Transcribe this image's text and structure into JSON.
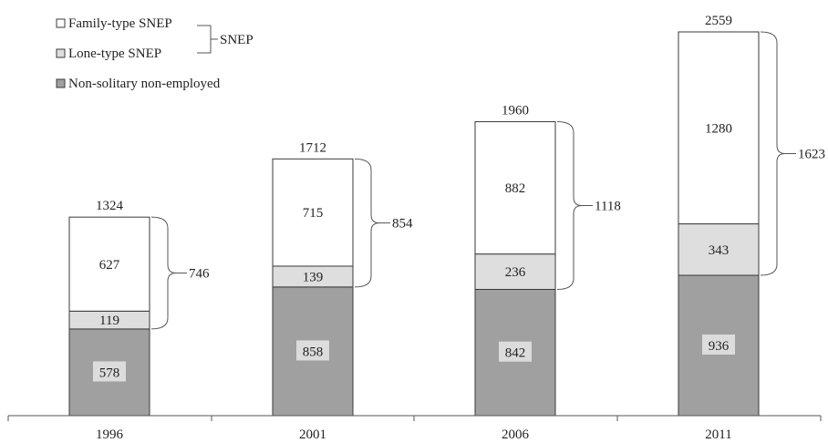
{
  "chart_data": {
    "type": "bar",
    "stacked": true,
    "categories": [
      "1996",
      "2001",
      "2006",
      "2011"
    ],
    "series": [
      {
        "name": "Non-solitary non-employed",
        "values": [
          578,
          858,
          842,
          936
        ],
        "color": "#a0a0a0"
      },
      {
        "name": "Lone-type SNEP",
        "values": [
          119,
          139,
          236,
          343
        ],
        "color": "#dedede"
      },
      {
        "name": "Family-type SNEP",
        "values": [
          627,
          715,
          882,
          1280
        ],
        "color": "#ffffff"
      }
    ],
    "totals": [
      1324,
      1712,
      1960,
      2559
    ],
    "snep_totals": [
      746,
      854,
      1118,
      1623
    ],
    "snep_group_label": "SNEP",
    "legend_order": [
      "Family-type SNEP",
      "Lone-type SNEP",
      "Non-solitary non-employed"
    ],
    "ylim": [
      0,
      2559
    ],
    "title": "",
    "xlabel": "",
    "ylabel": "",
    "grid": false,
    "legend_position": "top-left"
  }
}
